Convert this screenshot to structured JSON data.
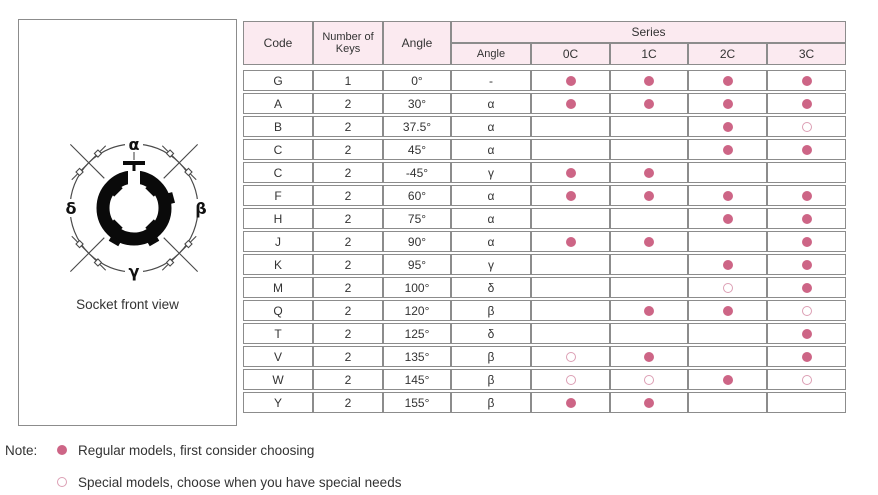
{
  "diagram": {
    "caption": "Socket front view",
    "labels": {
      "top": "α",
      "right": "β",
      "bottom": "γ",
      "left": "δ"
    }
  },
  "table": {
    "headers": {
      "code": "Code",
      "keys_line1": "Number of",
      "keys_line2": "Keys",
      "angle": "Angle",
      "series": "Series",
      "sub": [
        "Angle",
        "0C",
        "1C",
        "2C",
        "3C"
      ]
    },
    "rows": [
      {
        "code": "G",
        "keys": "1",
        "angle": "0°",
        "series_angle": "-",
        "marks": [
          "filled",
          "filled",
          "filled",
          "filled"
        ]
      },
      {
        "code": "A",
        "keys": "2",
        "angle": "30°",
        "series_angle": "α",
        "marks": [
          "filled",
          "filled",
          "filled",
          "filled"
        ]
      },
      {
        "code": "B",
        "keys": "2",
        "angle": "37.5°",
        "series_angle": "α",
        "marks": [
          "none",
          "none",
          "filled",
          "open"
        ]
      },
      {
        "code": "C",
        "keys": "2",
        "angle": "45°",
        "series_angle": "α",
        "marks": [
          "none",
          "none",
          "filled",
          "filled"
        ]
      },
      {
        "code": "C",
        "keys": "2",
        "angle": "-45°",
        "series_angle": "γ",
        "marks": [
          "filled",
          "filled",
          "none",
          "none"
        ]
      },
      {
        "code": "F",
        "keys": "2",
        "angle": "60°",
        "series_angle": "α",
        "marks": [
          "filled",
          "filled",
          "filled",
          "filled"
        ]
      },
      {
        "code": "H",
        "keys": "2",
        "angle": "75°",
        "series_angle": "α",
        "marks": [
          "none",
          "none",
          "filled",
          "filled"
        ]
      },
      {
        "code": "J",
        "keys": "2",
        "angle": "90°",
        "series_angle": "α",
        "marks": [
          "filled",
          "filled",
          "none",
          "filled"
        ]
      },
      {
        "code": "K",
        "keys": "2",
        "angle": "95°",
        "series_angle": "γ",
        "marks": [
          "none",
          "none",
          "filled",
          "filled"
        ]
      },
      {
        "code": "M",
        "keys": "2",
        "angle": "100°",
        "series_angle": "δ",
        "marks": [
          "none",
          "none",
          "open",
          "filled"
        ]
      },
      {
        "code": "Q",
        "keys": "2",
        "angle": "120°",
        "series_angle": "β",
        "marks": [
          "none",
          "filled",
          "filled",
          "open"
        ]
      },
      {
        "code": "T",
        "keys": "2",
        "angle": "125°",
        "series_angle": "δ",
        "marks": [
          "none",
          "none",
          "none",
          "filled"
        ]
      },
      {
        "code": "V",
        "keys": "2",
        "angle": "135°",
        "series_angle": "β",
        "marks": [
          "open",
          "filled",
          "none",
          "filled"
        ]
      },
      {
        "code": "W",
        "keys": "2",
        "angle": "145°",
        "series_angle": "β",
        "marks": [
          "open",
          "open",
          "filled",
          "open"
        ]
      },
      {
        "code": "Y",
        "keys": "2",
        "angle": "155°",
        "series_angle": "β",
        "marks": [
          "filled",
          "filled",
          "none",
          "none"
        ]
      }
    ]
  },
  "note": {
    "label": "Note:",
    "items": [
      {
        "marker": "filled",
        "text": "Regular models, first consider choosing"
      },
      {
        "marker": "open",
        "text": "Special models, choose when you have special needs"
      }
    ]
  },
  "colors": {
    "accent": "#cd6586",
    "accent_light": "#dc9fb4",
    "header_bg": "#fbeaf0",
    "border": "#8c8c8c"
  }
}
